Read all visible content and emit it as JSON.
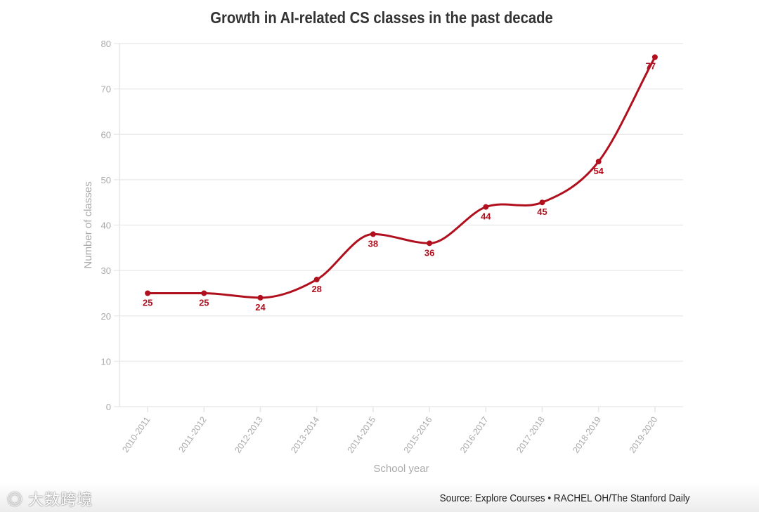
{
  "chart_data": {
    "type": "line",
    "title": "Growth in AI-related CS classes in the past decade",
    "xlabel": "School year",
    "ylabel": "Number of classes",
    "categories": [
      "2010-2011",
      "2011-2012",
      "2012-2013",
      "2013-2014",
      "2014-2015",
      "2015-2016",
      "2016-2017",
      "2017-2018",
      "2018-2019",
      "2019-2020"
    ],
    "values": [
      25,
      25,
      24,
      28,
      38,
      36,
      44,
      45,
      54,
      77
    ],
    "ylim": [
      0,
      80
    ],
    "yticks": [
      0,
      10,
      20,
      30,
      40,
      50,
      60,
      70,
      80
    ],
    "grid": true,
    "line_color": "#b0101e",
    "source": "Source: Explore Courses • RACHEL OH/The Stanford Daily"
  },
  "watermark": "大数跨境"
}
